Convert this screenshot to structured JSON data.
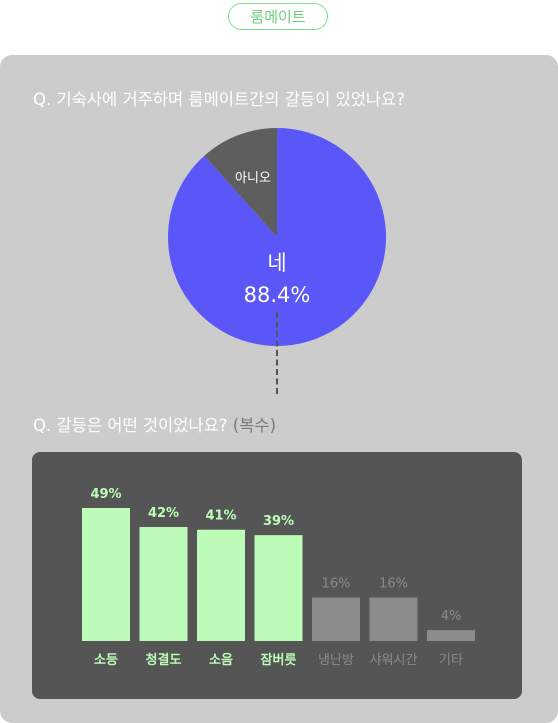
{
  "header": {
    "tag": "룸메이트"
  },
  "questions": {
    "q1": "Q. 기숙사에 거주하며 룸메이트간의 갈등이 있었나요?",
    "q2_main": "Q. 갈등은 어떤 것이었나요?",
    "q2_note": "(복수)"
  },
  "chart_data": [
    {
      "type": "pie",
      "slices": [
        {
          "label": "네",
          "value": 88.4,
          "value_label": "88.4%",
          "color": "#5a56f7"
        },
        {
          "label": "아니오",
          "value": 11.6,
          "color": "#5e5e5e"
        }
      ]
    },
    {
      "type": "bar",
      "categories": [
        "소등",
        "청결도",
        "소음",
        "잠버릇",
        "냉난방",
        "샤워시간",
        "기타"
      ],
      "values": [
        49,
        42,
        41,
        39,
        16,
        16,
        4
      ],
      "value_labels": [
        "49%",
        "42%",
        "41%",
        "39%",
        "16%",
        "16%",
        "4%"
      ],
      "highlighted": [
        true,
        true,
        true,
        true,
        false,
        false,
        false
      ],
      "colors": {
        "highlight": "#bdfcb8",
        "muted": "#8c8c8c",
        "highlight_text": "#bdfcb8",
        "muted_text": "#8c8c8c"
      },
      "ylim": [
        0,
        49
      ]
    }
  ]
}
